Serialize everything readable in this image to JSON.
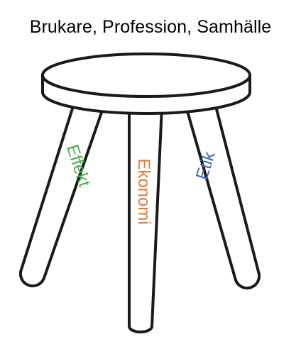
{
  "title": "Brukare, Profession, Samhälle",
  "legs": {
    "left": {
      "label": "Effekt",
      "color": "#4caf50"
    },
    "center": {
      "label": "Ekonomi",
      "color": "#e07b39"
    },
    "right": {
      "label": "Etik",
      "color": "#4a67b4"
    }
  },
  "colors": {
    "outline": "#1a1a1a",
    "fill": "#ffffff"
  }
}
